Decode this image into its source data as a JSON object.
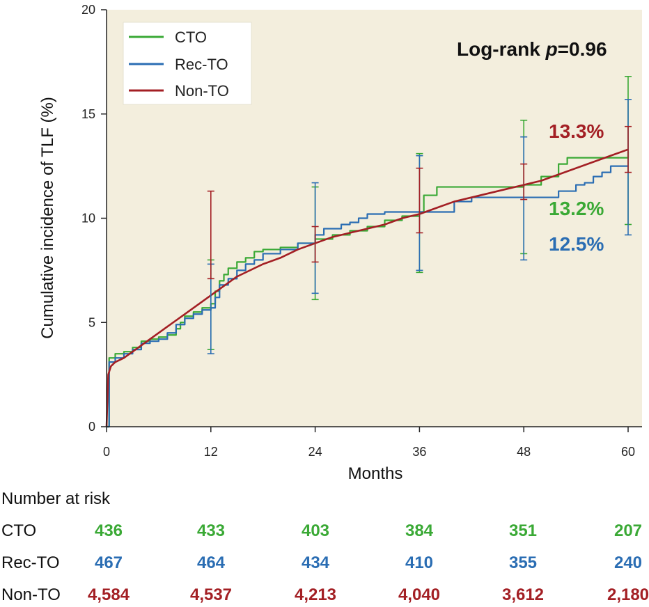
{
  "chart_data": {
    "type": "line",
    "title": "",
    "xlabel": "Months",
    "ylabel": "Cumulative incidence of TLF (%)",
    "xlim": [
      0,
      60
    ],
    "ylim": [
      0,
      20
    ],
    "xticks": [
      0,
      12,
      24,
      36,
      48,
      60
    ],
    "yticks": [
      0,
      5,
      10,
      15,
      20
    ],
    "legend_position": "top-left",
    "annotation": {
      "prefix": "Log-rank ",
      "italic": "p",
      "suffix": "=0.96"
    },
    "series": [
      {
        "name": "CTO",
        "color": "#3aa935",
        "step": true,
        "final_label": "13.2%",
        "x": [
          0,
          0.3,
          1,
          2,
          3,
          4,
          5,
          6,
          7,
          8,
          8.5,
          9,
          10,
          11,
          12,
          12.5,
          13,
          13.5,
          14,
          15,
          16,
          17,
          18,
          20,
          22,
          24,
          26,
          28,
          30,
          32,
          34,
          36,
          36.5,
          38,
          40,
          44,
          48,
          50,
          52,
          53,
          56,
          60
        ],
        "y": [
          0,
          3.3,
          3.5,
          3.6,
          3.8,
          4.1,
          4.2,
          4.3,
          4.4,
          4.7,
          5.0,
          5.3,
          5.5,
          5.7,
          5.9,
          6.5,
          7.0,
          7.3,
          7.6,
          7.9,
          8.1,
          8.4,
          8.5,
          8.6,
          8.8,
          9.0,
          9.2,
          9.4,
          9.6,
          9.9,
          10.1,
          10.3,
          11.1,
          11.5,
          11.5,
          11.5,
          11.6,
          12.0,
          12.6,
          12.9,
          12.9,
          13.2
        ]
      },
      {
        "name": "Rec-TO",
        "color": "#2a6db3",
        "step": true,
        "final_label": "12.5%",
        "x": [
          0,
          0.3,
          1,
          2,
          3,
          4,
          5,
          6,
          7,
          8,
          9,
          10,
          11,
          12,
          12.5,
          13,
          14,
          15,
          16,
          17,
          18,
          20,
          22,
          24,
          25,
          27,
          28,
          29,
          30,
          32,
          34,
          36,
          38,
          40,
          42,
          44,
          46,
          48,
          52,
          54,
          55,
          56,
          57,
          58,
          60
        ],
        "y": [
          0,
          3.1,
          3.3,
          3.5,
          3.7,
          4.0,
          4.1,
          4.2,
          4.5,
          4.9,
          5.2,
          5.4,
          5.6,
          5.7,
          6.2,
          6.8,
          7.1,
          7.5,
          7.8,
          8.0,
          8.3,
          8.5,
          8.8,
          9.2,
          9.5,
          9.7,
          9.8,
          10.0,
          10.2,
          10.3,
          10.3,
          10.3,
          10.3,
          10.8,
          11.0,
          11.0,
          11.0,
          11.0,
          11.3,
          11.6,
          11.7,
          12.0,
          12.2,
          12.5,
          12.5
        ]
      },
      {
        "name": "Non-TO",
        "color": "#a31f24",
        "step": false,
        "final_label": "13.3%",
        "x": [
          0,
          0.2,
          0.5,
          1,
          2,
          3,
          4,
          5,
          6,
          7,
          8,
          9,
          10,
          11,
          12,
          13,
          14,
          15,
          16,
          18,
          20,
          22,
          24,
          26,
          28,
          30,
          32,
          34,
          36,
          38,
          40,
          42,
          44,
          46,
          48,
          50,
          52,
          54,
          56,
          58,
          60
        ],
        "y": [
          0,
          2.5,
          2.9,
          3.1,
          3.3,
          3.6,
          3.9,
          4.2,
          4.5,
          4.8,
          5.1,
          5.4,
          5.7,
          6.0,
          6.3,
          6.6,
          6.9,
          7.2,
          7.4,
          7.8,
          8.1,
          8.5,
          8.8,
          9.1,
          9.3,
          9.5,
          9.7,
          10.0,
          10.2,
          10.5,
          10.8,
          11.0,
          11.2,
          11.4,
          11.6,
          11.8,
          12.1,
          12.4,
          12.7,
          13.0,
          13.3
        ]
      }
    ],
    "error_bars": [
      {
        "series": "CTO",
        "x": 12,
        "low": 3.7,
        "high": 8.0
      },
      {
        "series": "Rec-TO",
        "x": 12,
        "low": 3.5,
        "high": 7.8
      },
      {
        "series": "Non-TO",
        "x": 12,
        "low": 7.1,
        "high": 11.3
      },
      {
        "series": "CTO",
        "x": 24,
        "low": 6.1,
        "high": 11.5
      },
      {
        "series": "Rec-TO",
        "x": 24,
        "low": 6.4,
        "high": 11.7
      },
      {
        "series": "Non-TO",
        "x": 24,
        "low": 7.9,
        "high": 9.6
      },
      {
        "series": "CTO",
        "x": 36,
        "low": 7.4,
        "high": 13.1
      },
      {
        "series": "Rec-TO",
        "x": 36,
        "low": 7.5,
        "high": 13.0
      },
      {
        "series": "Non-TO",
        "x": 36,
        "low": 9.3,
        "high": 12.4
      },
      {
        "series": "CTO",
        "x": 48,
        "low": 8.3,
        "high": 14.7
      },
      {
        "series": "Rec-TO",
        "x": 48,
        "low": 8.0,
        "high": 13.9
      },
      {
        "series": "Non-TO",
        "x": 48,
        "low": 10.9,
        "high": 12.6
      },
      {
        "series": "CTO",
        "x": 60,
        "low": 9.7,
        "high": 16.8
      },
      {
        "series": "Rec-TO",
        "x": 60,
        "low": 9.2,
        "high": 15.7
      },
      {
        "series": "Non-TO",
        "x": 60,
        "low": 12.2,
        "high": 14.4
      }
    ]
  },
  "risk_table": {
    "title": "Number at risk",
    "rows": [
      {
        "label": "CTO",
        "color": "#3aa935",
        "values": [
          "436",
          "433",
          "403",
          "384",
          "351",
          "207"
        ]
      },
      {
        "label": "Rec-TO",
        "color": "#2a6db3",
        "values": [
          "467",
          "464",
          "434",
          "410",
          "355",
          "240"
        ]
      },
      {
        "label": "Non-TO",
        "color": "#a31f24",
        "values": [
          "4,584",
          "4,537",
          "4,213",
          "4,040",
          "3,612",
          "2,180"
        ]
      }
    ]
  }
}
